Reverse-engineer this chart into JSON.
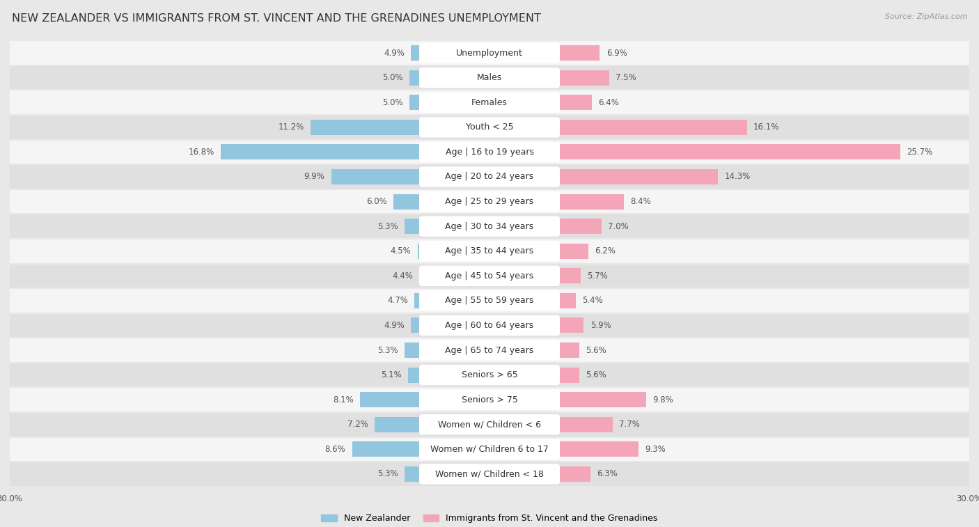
{
  "title": "NEW ZEALANDER VS IMMIGRANTS FROM ST. VINCENT AND THE GRENADINES UNEMPLOYMENT",
  "source": "Source: ZipAtlas.com",
  "categories": [
    "Unemployment",
    "Males",
    "Females",
    "Youth < 25",
    "Age | 16 to 19 years",
    "Age | 20 to 24 years",
    "Age | 25 to 29 years",
    "Age | 30 to 34 years",
    "Age | 35 to 44 years",
    "Age | 45 to 54 years",
    "Age | 55 to 59 years",
    "Age | 60 to 64 years",
    "Age | 65 to 74 years",
    "Seniors > 65",
    "Seniors > 75",
    "Women w/ Children < 6",
    "Women w/ Children 6 to 17",
    "Women w/ Children < 18"
  ],
  "left_values": [
    4.9,
    5.0,
    5.0,
    11.2,
    16.8,
    9.9,
    6.0,
    5.3,
    4.5,
    4.4,
    4.7,
    4.9,
    5.3,
    5.1,
    8.1,
    7.2,
    8.6,
    5.3
  ],
  "right_values": [
    6.9,
    7.5,
    6.4,
    16.1,
    25.7,
    14.3,
    8.4,
    7.0,
    6.2,
    5.7,
    5.4,
    5.9,
    5.6,
    5.6,
    9.8,
    7.7,
    9.3,
    6.3
  ],
  "left_color": "#92c5de",
  "right_color": "#f4a6b8",
  "max_val": 30.0,
  "left_label": "New Zealander",
  "right_label": "Immigrants from St. Vincent and the Grenadines",
  "bg_color": "#e8e8e8",
  "row_color_odd": "#f5f5f5",
  "row_color_even": "#e0e0e0",
  "bar_bg_color": "#ffffff",
  "title_fontsize": 11.5,
  "label_fontsize": 9.0,
  "value_fontsize": 8.5,
  "source_fontsize": 8.0
}
